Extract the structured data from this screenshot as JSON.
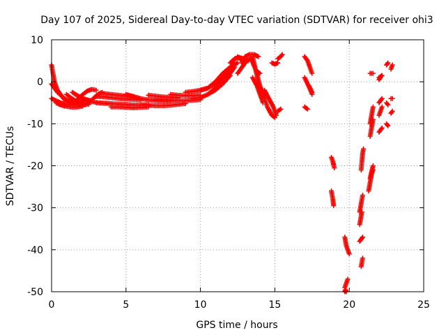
{
  "chart_data": {
    "type": "scatter",
    "title": "Day 107 of 2025, Sidereal Day-to-day VTEC variation (SDTVAR) for receiver ohi3",
    "xlabel": "GPS time / hours",
    "ylabel": "SDTVAR / TECUs",
    "xlim": [
      0,
      25
    ],
    "ylim": [
      -50,
      10
    ],
    "xticks": [
      0,
      5,
      10,
      15,
      20,
      25
    ],
    "yticks": [
      10,
      0,
      -10,
      -20,
      -30,
      -40,
      -50
    ],
    "xtick_labels": [
      "0",
      "5",
      "10",
      "15",
      "20",
      "25"
    ],
    "ytick_labels": [
      "10",
      "0",
      "-10",
      "-20",
      "-30",
      "-40",
      "-50"
    ],
    "grid": true,
    "marker": "plus",
    "series_color": "#ff0000",
    "series": [
      {
        "name": "SDTVAR",
        "segments": [
          {
            "x": [
              0.0,
              0.2,
              0.4,
              0.6,
              0.8,
              1.0,
              1.3,
              1.6,
              2.0,
              2.3
            ],
            "y": [
              4,
              0,
              -2,
              -3,
              -4,
              -4.5,
              -5,
              -5.2,
              -5.5,
              -5.5
            ]
          },
          {
            "x": [
              0.0,
              0.2,
              0.4,
              0.7,
              1.0,
              1.3,
              1.6,
              2.0
            ],
            "y": [
              -0.5,
              -1.5,
              -2.5,
              -3.5,
              -4.3,
              -4.8,
              -5.2,
              -5.3
            ]
          },
          {
            "x": [
              0.0,
              0.3,
              0.6,
              0.9,
              1.2,
              1.5,
              1.8
            ],
            "y": [
              -4,
              -4.5,
              -5,
              -5.3,
              -5.5,
              -5.6,
              -5.5
            ]
          },
          {
            "x": [
              0.3,
              0.6,
              0.9,
              1.2,
              1.5,
              1.8,
              2.1
            ],
            "y": [
              -5,
              -5.5,
              -5.8,
              -6,
              -6.1,
              -6,
              -5.8
            ]
          },
          {
            "x": [
              1.0,
              1.3,
              1.6,
              1.9,
              2.2,
              2.5
            ],
            "y": [
              -3,
              -3.8,
              -4.5,
              -4.9,
              -5.2,
              -5.4
            ]
          },
          {
            "x": [
              1.5,
              1.8,
              2.1,
              2.4,
              2.7,
              3.0
            ],
            "y": [
              -5,
              -4,
              -3,
              -2.2,
              -1.8,
              -2
            ]
          },
          {
            "x": [
              1.4,
              1.7,
              2.0,
              2.3,
              2.6
            ],
            "y": [
              -2.5,
              -3.2,
              -3.8,
              -4.2,
              -4.5
            ]
          },
          {
            "x": [
              2.5,
              2.8,
              3.1,
              3.4
            ],
            "y": [
              -5,
              -4,
              -3,
              -2.5
            ]
          },
          {
            "x": [
              2.0,
              2.4,
              2.8,
              3.2,
              3.6,
              4.0
            ],
            "y": [
              -4.2,
              -4.5,
              -4.8,
              -5,
              -5.1,
              -5.2
            ]
          },
          {
            "x": [
              3.0,
              3.5,
              4.0,
              4.5,
              5.0,
              5.5,
              6.0
            ],
            "y": [
              -3.5,
              -3.6,
              -3.8,
              -4,
              -4.1,
              -4.2,
              -4.3
            ]
          },
          {
            "x": [
              3.0,
              3.5,
              4.0,
              4.5,
              5.0,
              5.5,
              6.0,
              6.5
            ],
            "y": [
              -5,
              -5.1,
              -5.2,
              -5.3,
              -5.4,
              -5.5,
              -5.5,
              -5.4
            ]
          },
          {
            "x": [
              3.5,
              4.0,
              4.5,
              5.0,
              5.5
            ],
            "y": [
              -2.8,
              -3,
              -3.2,
              -3.4,
              -3.5
            ]
          },
          {
            "x": [
              4.0,
              4.5,
              5.0,
              5.5,
              6.0,
              6.5
            ],
            "y": [
              -6,
              -6,
              -6.1,
              -6.2,
              -6.1,
              -6
            ]
          },
          {
            "x": [
              5.0,
              5.5,
              6.0,
              6.5,
              7.0,
              7.5,
              8.0
            ],
            "y": [
              -3,
              -3.5,
              -4,
              -4.3,
              -4.5,
              -4.6,
              -4.5
            ]
          },
          {
            "x": [
              6.0,
              6.5,
              7.0,
              7.5,
              8.0,
              8.5,
              9.0
            ],
            "y": [
              -5.5,
              -5.6,
              -5.7,
              -5.7,
              -5.6,
              -5.4,
              -5.2
            ]
          },
          {
            "x": [
              6.5,
              7.0,
              7.5,
              8.0,
              8.5
            ],
            "y": [
              -3.2,
              -3.4,
              -3.6,
              -3.7,
              -3.8
            ]
          },
          {
            "x": [
              7.0,
              7.5,
              8.0,
              8.5,
              9.0,
              9.5,
              10.0
            ],
            "y": [
              -4.2,
              -4.3,
              -4.4,
              -4.5,
              -4.5,
              -4.4,
              -4.3
            ]
          },
          {
            "x": [
              8.0,
              8.5,
              9.0,
              9.5,
              10.0
            ],
            "y": [
              -3,
              -3.2,
              -3.3,
              -3.3,
              -3.2
            ]
          },
          {
            "x": [
              9.0,
              9.5,
              10.0,
              10.5,
              11.0,
              11.5,
              12.0,
              12.2
            ],
            "y": [
              -2.5,
              -2.3,
              -2,
              -1.5,
              -0.5,
              1,
              3,
              4
            ]
          },
          {
            "x": [
              9.5,
              10.0,
              10.5,
              11.0,
              11.5,
              12.0
            ],
            "y": [
              -4,
              -3.8,
              -3,
              -2,
              -0.5,
              1.5
            ]
          },
          {
            "x": [
              10.0,
              10.5,
              11.0,
              11.5,
              12.0,
              12.5
            ],
            "y": [
              -2,
              -1.5,
              0,
              2,
              3.5,
              4.5
            ]
          },
          {
            "x": [
              10.5,
              11.0,
              11.5,
              12.0,
              12.3
            ],
            "y": [
              -3,
              -1.5,
              1,
              3,
              4.5
            ]
          },
          {
            "x": [
              11.5,
              12.0,
              12.3
            ],
            "y": [
              0,
              2,
              3.5
            ]
          },
          {
            "x": [
              12.0,
              12.3,
              12.6,
              12.9,
              13.2
            ],
            "y": [
              4.5,
              5.5,
              5.8,
              5.5,
              5
            ]
          },
          {
            "x": [
              12.5,
              12.7,
              12.9
            ],
            "y": [
              6,
              5.5,
              4
            ]
          },
          {
            "x": [
              12.5,
              12.8,
              13.1,
              13.4,
              13.7,
              14.0,
              14.2
            ],
            "y": [
              2,
              3.5,
              5,
              5.5,
              3,
              -1,
              -3.5
            ]
          },
          {
            "x": [
              13.0,
              13.3,
              13.6,
              13.9
            ],
            "y": [
              6,
              6.5,
              6.5,
              6
            ]
          },
          {
            "x": [
              13.5,
              13.7,
              13.9,
              14.2,
              14.5,
              14.8,
              15.0
            ],
            "y": [
              6,
              3,
              0,
              -3,
              -6,
              -8,
              -8.5
            ]
          },
          {
            "x": [
              13.5,
              13.8,
              14.0,
              14.2
            ],
            "y": [
              1,
              -1,
              -3,
              -5
            ]
          },
          {
            "x": [
              13.8,
              14.0
            ],
            "y": [
              2.5,
              2
            ]
          },
          {
            "x": [
              14.3,
              14.6,
              14.9,
              15.1
            ],
            "y": [
              -2,
              -4,
              -6,
              -8
            ]
          },
          {
            "x": [
              14.8,
              15.0,
              15.2
            ],
            "y": [
              4.5,
              4.2,
              4.5
            ]
          },
          {
            "x": [
              15.2,
              15.4,
              15.5
            ],
            "y": [
              5.5,
              6,
              6.5
            ]
          },
          {
            "x": [
              15.2,
              15.4
            ],
            "y": [
              -7,
              -6.5
            ]
          },
          {
            "x": [
              17.0,
              17.2,
              17.3
            ],
            "y": [
              6,
              5,
              4
            ]
          },
          {
            "x": [
              17.3,
              17.4,
              17.5
            ],
            "y": [
              4,
              3,
              2
            ]
          },
          {
            "x": [
              17.0,
              17.2,
              17.4,
              17.5
            ],
            "y": [
              1,
              -0.5,
              -2,
              -3
            ]
          },
          {
            "x": [
              17.3,
              17.5
            ],
            "y": [
              -1,
              -2.5
            ]
          },
          {
            "x": [
              17.0,
              17.2
            ],
            "y": [
              -6,
              -6.5
            ]
          },
          {
            "x": [
              18.8,
              18.9,
              18.95,
              19.0
            ],
            "y": [
              -18,
              -19,
              -19.8,
              -20.5
            ]
          },
          {
            "x": [
              18.8,
              18.85,
              18.9,
              18.95
            ],
            "y": [
              -26,
              -27,
              -28,
              -29.5
            ]
          },
          {
            "x": [
              19.7,
              19.75,
              19.8,
              19.9,
              20.0
            ],
            "y": [
              -37,
              -38,
              -39,
              -40,
              -41
            ]
          },
          {
            "x": [
              19.7,
              19.8,
              19.9
            ],
            "y": [
              -49,
              -48,
              -47
            ]
          },
          {
            "x": [
              19.7,
              19.75,
              19.8
            ],
            "y": [
              -50,
              -49.5,
              -50
            ]
          },
          {
            "x": [
              20.7,
              20.75,
              20.8,
              20.85,
              20.9
            ],
            "y": [
              -31,
              -30,
              -29,
              -28,
              -27
            ]
          },
          {
            "x": [
              20.7,
              20.75,
              20.8,
              20.85
            ],
            "y": [
              -34,
              -33,
              -32,
              -31
            ]
          },
          {
            "x": [
              20.7,
              20.8,
              20.9
            ],
            "y": [
              -38,
              -37.5,
              -37
            ]
          },
          {
            "x": [
              20.8,
              20.85,
              20.9
            ],
            "y": [
              -44,
              -43,
              -42
            ]
          },
          {
            "x": [
              20.8,
              20.85,
              20.9,
              20.95
            ],
            "y": [
              -21,
              -19,
              -17,
              -16
            ]
          },
          {
            "x": [
              21.3,
              21.4,
              21.5,
              21.6
            ],
            "y": [
              -26,
              -24,
              -22,
              -21
            ]
          },
          {
            "x": [
              21.4,
              21.5,
              21.6
            ],
            "y": [
              -23,
              -21.5,
              -20
            ]
          },
          {
            "x": [
              21.4,
              21.5,
              21.6
            ],
            "y": [
              -13,
              -11,
              -9
            ]
          },
          {
            "x": [
              21.4,
              21.5,
              21.6
            ],
            "y": [
              -10,
              -8,
              -6
            ]
          },
          {
            "x": [
              21.4,
              21.6
            ],
            "y": [
              2,
              2
            ]
          },
          {
            "x": [
              22.0,
              22.2
            ],
            "y": [
              -12,
              -11
            ]
          },
          {
            "x": [
              22.0,
              22.1,
              22.2
            ],
            "y": [
              -8,
              -7,
              -6
            ]
          },
          {
            "x": [
              22.0,
              22.2
            ],
            "y": [
              -5,
              -4
            ]
          },
          {
            "x": [
              22.0,
              22.2
            ],
            "y": [
              1,
              1.5
            ]
          },
          {
            "x": [
              22.0,
              22.1
            ],
            "y": [
              0.5,
              1
            ]
          },
          {
            "x": [
              22.5,
              22.6
            ],
            "y": [
              -10,
              -10.5
            ]
          },
          {
            "x": [
              22.5,
              22.6
            ],
            "y": [
              -5,
              -5.5
            ]
          },
          {
            "x": [
              22.5,
              22.6
            ],
            "y": [
              4,
              4.5
            ]
          },
          {
            "x": [
              22.8,
              22.9
            ],
            "y": [
              -7.5,
              -7
            ]
          },
          {
            "x": [
              22.8,
              22.9
            ],
            "y": [
              3,
              4
            ]
          },
          {
            "x": [
              22.8,
              22.9
            ],
            "y": [
              -4,
              -4
            ]
          }
        ]
      }
    ]
  }
}
